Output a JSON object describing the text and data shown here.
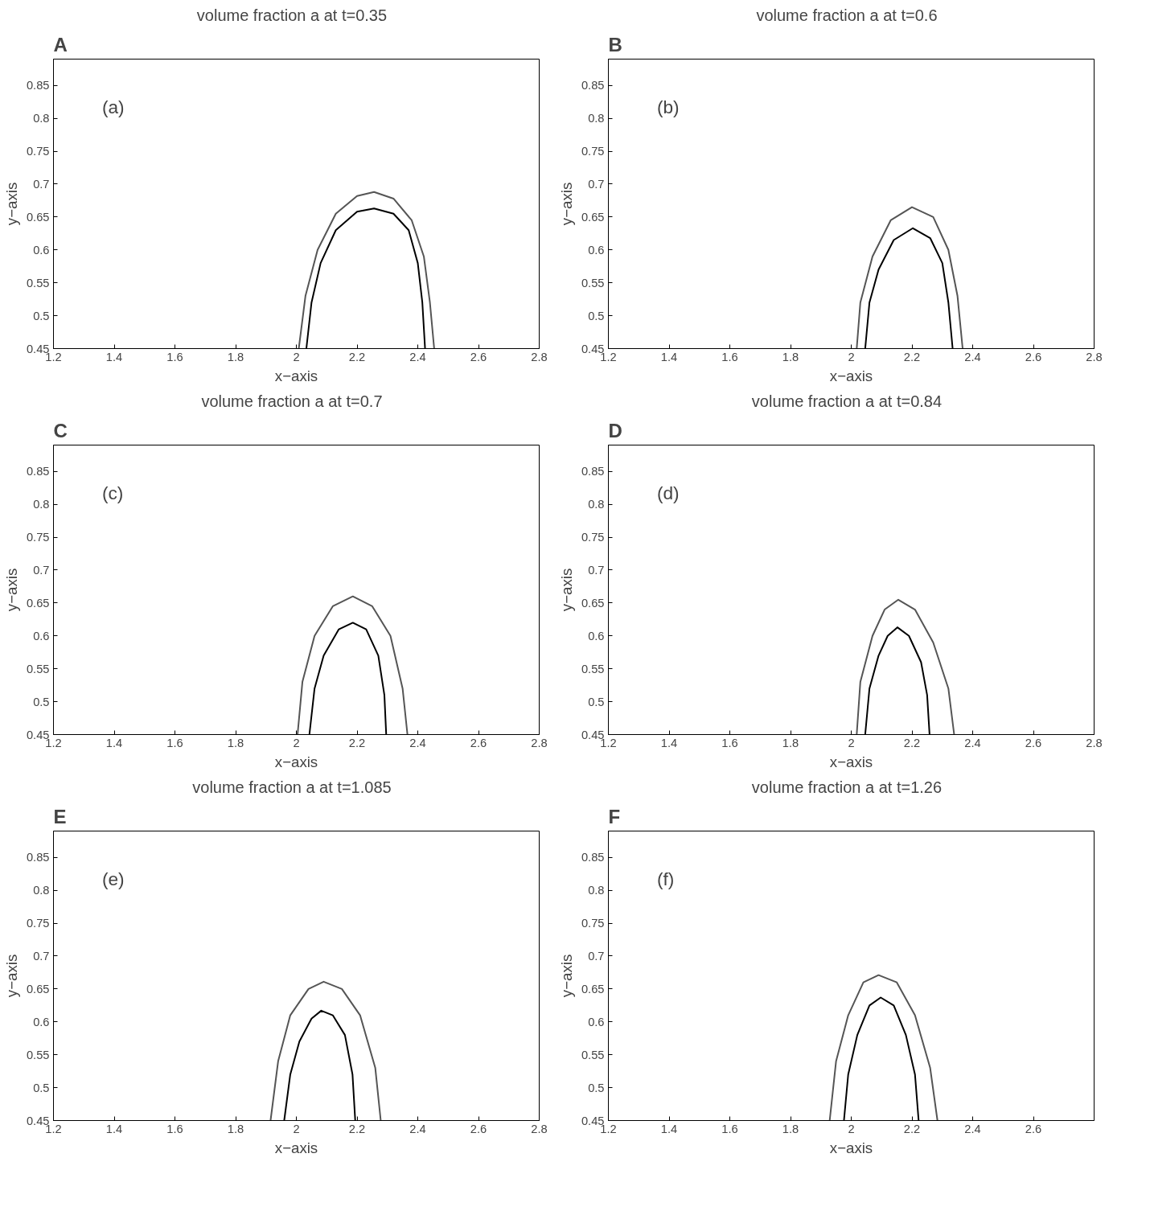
{
  "chart_data": [
    {
      "type": "line",
      "title": "volume fraction  a  at t=0.35",
      "xlabel": "x−axis",
      "ylabel": "y−axis",
      "annotations": [
        "A",
        "(a)"
      ],
      "xlim": [
        1.2,
        2.8
      ],
      "xticks": [
        1.2,
        1.4,
        1.6,
        1.8,
        2,
        2.2,
        2.4,
        2.6,
        2.8
      ],
      "ylim": [
        0.45,
        0.89
      ],
      "yticks": [
        0.45,
        0.5,
        0.55,
        0.6,
        0.65,
        0.7,
        0.75,
        0.8,
        0.85
      ],
      "grid": false,
      "marker": "none",
      "line_style": "solid",
      "series": [
        {
          "color": "#000000",
          "x": [
            2.033,
            2.05,
            2.08,
            2.13,
            2.2,
            2.256,
            2.32,
            2.37,
            2.4,
            2.415,
            2.424
          ],
          "values": [
            0.45,
            0.52,
            0.58,
            0.63,
            0.658,
            0.663,
            0.655,
            0.63,
            0.58,
            0.52,
            0.45
          ]
        },
        {
          "color": "#555555",
          "x": [
            2.008,
            2.03,
            2.07,
            2.13,
            2.2,
            2.256,
            2.32,
            2.38,
            2.42,
            2.44,
            2.454
          ],
          "values": [
            0.45,
            0.53,
            0.6,
            0.655,
            0.682,
            0.688,
            0.678,
            0.645,
            0.59,
            0.52,
            0.45
          ]
        }
      ]
    },
    {
      "type": "line",
      "title": "volume fraction  a  at t=0.6",
      "xlabel": "x−axis",
      "ylabel": "y−axis",
      "annotations": [
        "B",
        "(b)"
      ],
      "xlim": [
        1.2,
        2.8
      ],
      "xticks": [
        1.2,
        1.4,
        1.6,
        1.8,
        2,
        2.2,
        2.4,
        2.6,
        2.8
      ],
      "ylim": [
        0.45,
        0.89
      ],
      "yticks": [
        0.45,
        0.5,
        0.55,
        0.6,
        0.65,
        0.7,
        0.75,
        0.8,
        0.85
      ],
      "grid": false,
      "marker": "none",
      "line_style": "solid",
      "series": [
        {
          "color": "#000000",
          "x": [
            2.046,
            2.06,
            2.09,
            2.14,
            2.203,
            2.26,
            2.3,
            2.32,
            2.334
          ],
          "values": [
            0.45,
            0.52,
            0.57,
            0.615,
            0.633,
            0.618,
            0.58,
            0.52,
            0.45
          ]
        },
        {
          "color": "#555555",
          "x": [
            2.018,
            2.03,
            2.07,
            2.13,
            2.2,
            2.27,
            2.32,
            2.35,
            2.367
          ],
          "values": [
            0.45,
            0.52,
            0.59,
            0.645,
            0.665,
            0.65,
            0.6,
            0.53,
            0.45
          ]
        }
      ]
    },
    {
      "type": "line",
      "title": "volume fraction  a  at t=0.7",
      "xlabel": "x−axis",
      "ylabel": "y−axis",
      "annotations": [
        "C",
        "(c)"
      ],
      "xlim": [
        1.2,
        2.8
      ],
      "xticks": [
        1.2,
        1.4,
        1.6,
        1.8,
        2,
        2.2,
        2.4,
        2.6,
        2.8
      ],
      "ylim": [
        0.45,
        0.89
      ],
      "yticks": [
        0.45,
        0.5,
        0.55,
        0.6,
        0.65,
        0.7,
        0.75,
        0.8,
        0.85
      ],
      "grid": false,
      "marker": "none",
      "line_style": "solid",
      "series": [
        {
          "color": "#000000",
          "x": [
            2.043,
            2.06,
            2.09,
            2.14,
            2.186,
            2.23,
            2.27,
            2.29,
            2.296
          ],
          "values": [
            0.45,
            0.52,
            0.57,
            0.61,
            0.62,
            0.61,
            0.57,
            0.51,
            0.45
          ]
        },
        {
          "color": "#555555",
          "x": [
            2.004,
            2.02,
            2.06,
            2.12,
            2.186,
            2.25,
            2.31,
            2.35,
            2.366
          ],
          "values": [
            0.45,
            0.53,
            0.6,
            0.645,
            0.66,
            0.645,
            0.6,
            0.52,
            0.45
          ]
        }
      ]
    },
    {
      "type": "line",
      "title": "volume fraction  a  at t=0.84",
      "xlabel": "x−axis",
      "ylabel": "y−axis",
      "annotations": [
        "D",
        "(d)"
      ],
      "xlim": [
        1.2,
        2.8
      ],
      "xticks": [
        1.2,
        1.4,
        1.6,
        1.8,
        2,
        2.2,
        2.4,
        2.6,
        2.8
      ],
      "ylim": [
        0.45,
        0.89
      ],
      "yticks": [
        0.45,
        0.5,
        0.55,
        0.6,
        0.65,
        0.7,
        0.75,
        0.8,
        0.85
      ],
      "grid": false,
      "marker": "none",
      "line_style": "solid",
      "series": [
        {
          "color": "#000000",
          "x": [
            2.046,
            2.06,
            2.09,
            2.12,
            2.152,
            2.19,
            2.23,
            2.25,
            2.258
          ],
          "values": [
            0.45,
            0.52,
            0.57,
            0.6,
            0.613,
            0.6,
            0.56,
            0.51,
            0.45
          ]
        },
        {
          "color": "#555555",
          "x": [
            2.018,
            2.03,
            2.07,
            2.11,
            2.155,
            2.21,
            2.27,
            2.32,
            2.339
          ],
          "values": [
            0.45,
            0.53,
            0.6,
            0.64,
            0.655,
            0.64,
            0.59,
            0.52,
            0.45
          ]
        }
      ]
    },
    {
      "type": "line",
      "title": "volume fraction  a  at t=1.085",
      "xlabel": "x−axis",
      "ylabel": "y−axis",
      "annotations": [
        "E",
        "(e)"
      ],
      "xlim": [
        1.2,
        2.8
      ],
      "xticks": [
        1.2,
        1.4,
        1.6,
        1.8,
        2,
        2.2,
        2.4,
        2.6,
        2.8
      ],
      "ylim": [
        0.45,
        0.89
      ],
      "yticks": [
        0.45,
        0.5,
        0.55,
        0.6,
        0.65,
        0.7,
        0.75,
        0.8,
        0.85
      ],
      "grid": false,
      "marker": "none",
      "line_style": "solid",
      "series": [
        {
          "color": "#000000",
          "x": [
            1.96,
            1.98,
            2.01,
            2.05,
            2.082,
            2.12,
            2.16,
            2.185,
            2.194
          ],
          "values": [
            0.45,
            0.52,
            0.57,
            0.605,
            0.617,
            0.61,
            0.58,
            0.52,
            0.45
          ]
        },
        {
          "color": "#555555",
          "x": [
            1.915,
            1.94,
            1.98,
            2.04,
            2.09,
            2.15,
            2.21,
            2.26,
            2.278
          ],
          "values": [
            0.45,
            0.54,
            0.61,
            0.65,
            0.661,
            0.65,
            0.61,
            0.53,
            0.45
          ]
        }
      ]
    },
    {
      "type": "line",
      "title": "volume fraction  a  at t=1.26",
      "xlabel": "x−axis",
      "ylabel": "y−axis",
      "annotations": [
        "F",
        "(f)"
      ],
      "xlim": [
        1.2,
        2.8
      ],
      "xticks": [
        1.2,
        1.4,
        1.6,
        1.8,
        2,
        2.2,
        2.4,
        2.6
      ],
      "ylim": [
        0.45,
        0.89
      ],
      "yticks": [
        0.45,
        0.5,
        0.55,
        0.6,
        0.65,
        0.7,
        0.75,
        0.8,
        0.85
      ],
      "grid": false,
      "marker": "none",
      "line_style": "solid",
      "series": [
        {
          "color": "#000000",
          "x": [
            1.976,
            1.99,
            2.02,
            2.06,
            2.097,
            2.14,
            2.18,
            2.21,
            2.222
          ],
          "values": [
            0.45,
            0.52,
            0.58,
            0.625,
            0.637,
            0.625,
            0.58,
            0.52,
            0.45
          ]
        },
        {
          "color": "#555555",
          "x": [
            1.929,
            1.95,
            1.99,
            2.04,
            2.09,
            2.15,
            2.21,
            2.26,
            2.284
          ],
          "values": [
            0.45,
            0.54,
            0.61,
            0.66,
            0.671,
            0.66,
            0.61,
            0.53,
            0.45
          ]
        }
      ]
    }
  ]
}
